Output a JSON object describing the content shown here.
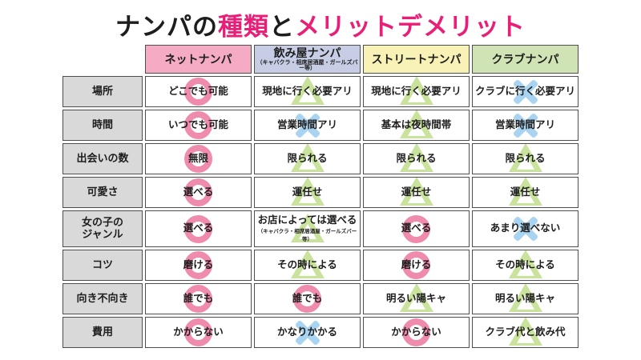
{
  "title_parts": {
    "p1": "ナンパの",
    "p2": "種類",
    "p3": "と",
    "p4": "メリットデメリット"
  },
  "colors": {
    "title_accent": "#e91e77",
    "header_net": "#f5abc3",
    "header_bar": "#c6cde5",
    "header_street": "#f8f2b6",
    "header_club": "#cfe3b4",
    "row_label_bg": "#d9d9d9",
    "symbol_circle": "#ef8cae",
    "symbol_triangle": "#c9e29c",
    "symbol_cross": "#a9d4f1",
    "border": "#4d4d4d"
  },
  "chart_data": {
    "type": "table",
    "title": "ナンパの種類とメリットデメリット",
    "symbol_legend_note": "circle=◯ / triangle=△ / cross=✕ (overlaid behind cell text)",
    "columns": [
      {
        "label": "ネットナンパ"
      },
      {
        "label": "飲み屋ナンパ",
        "sublabel": "（キャバクラ・相席居酒屋・ガールズバー等）"
      },
      {
        "label": "ストリートナンパ"
      },
      {
        "label": "クラブナンパ"
      }
    ],
    "rows": [
      {
        "label": "場所",
        "cells": [
          {
            "text": "どこでも可能",
            "symbol": "circle"
          },
          {
            "text": "現地に行く必要アリ",
            "symbol": "triangle"
          },
          {
            "text": "現地に行く必要アリ",
            "symbol": "triangle"
          },
          {
            "text": "クラブに行く必要アリ",
            "symbol": "cross"
          }
        ]
      },
      {
        "label": "時間",
        "cells": [
          {
            "text": "いつでも可能",
            "symbol": "circle"
          },
          {
            "text": "営業時間アリ",
            "symbol": "cross"
          },
          {
            "text": "基本は夜時間帯",
            "symbol": "triangle"
          },
          {
            "text": "営業時間アリ",
            "symbol": "cross"
          }
        ]
      },
      {
        "label": "出会いの数",
        "cells": [
          {
            "text": "無限",
            "symbol": "circle"
          },
          {
            "text": "限られる",
            "symbol": "triangle"
          },
          {
            "text": "限られる",
            "symbol": "triangle"
          },
          {
            "text": "限られる",
            "symbol": "triangle"
          }
        ]
      },
      {
        "label": "可愛さ",
        "cells": [
          {
            "text": "選べる",
            "symbol": "circle"
          },
          {
            "text": "運任せ",
            "symbol": "triangle"
          },
          {
            "text": "運任せ",
            "symbol": "triangle"
          },
          {
            "text": "運任せ",
            "symbol": "triangle"
          }
        ]
      },
      {
        "label": "女の子の\nジャンル",
        "cells": [
          {
            "text": "選べる",
            "symbol": "circle"
          },
          {
            "text": "お店によっては選べる",
            "sub": "（キャバクラ・相席居酒屋・ガールズバー等）",
            "symbol": "triangle"
          },
          {
            "text": "選べる",
            "symbol": "circle"
          },
          {
            "text": "あまり選べない",
            "symbol": "cross"
          }
        ]
      },
      {
        "label": "コツ",
        "cells": [
          {
            "text": "磨ける",
            "symbol": "circle"
          },
          {
            "text": "その時による",
            "symbol": "triangle"
          },
          {
            "text": "磨ける",
            "symbol": "circle"
          },
          {
            "text": "その時による",
            "symbol": "triangle"
          }
        ]
      },
      {
        "label": "向き不向き",
        "cells": [
          {
            "text": "誰でも",
            "symbol": "circle"
          },
          {
            "text": "誰でも",
            "symbol": "circle"
          },
          {
            "text": "明るい陽キャ",
            "symbol": "triangle"
          },
          {
            "text": "明るい陽キャ",
            "symbol": "triangle"
          }
        ]
      },
      {
        "label": "費用",
        "cells": [
          {
            "text": "かからない",
            "symbol": "circle"
          },
          {
            "text": "かなりかかる",
            "symbol": "cross"
          },
          {
            "text": "かからない",
            "symbol": "circle"
          },
          {
            "text": "クラブ代と飲み代",
            "symbol": "triangle"
          }
        ]
      }
    ]
  }
}
